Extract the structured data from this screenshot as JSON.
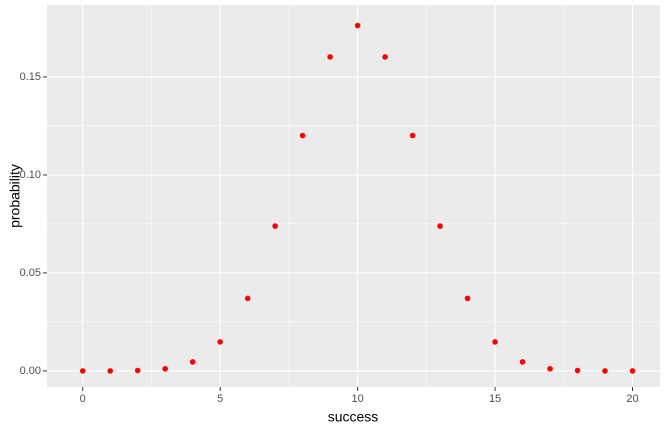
{
  "chart_data": {
    "type": "scatter",
    "x_label": "success",
    "y_label": "probability",
    "x": [
      0,
      1,
      2,
      3,
      4,
      5,
      6,
      7,
      8,
      9,
      10,
      11,
      12,
      13,
      14,
      15,
      16,
      17,
      18,
      19,
      20
    ],
    "values": [
      0,
      0,
      0.0002,
      0.0011,
      0.0046,
      0.0148,
      0.037,
      0.0739,
      0.1201,
      0.1602,
      0.1762,
      0.1602,
      0.1201,
      0.0739,
      0.037,
      0.0148,
      0.0046,
      0.0011,
      0.0002,
      0,
      0
    ],
    "color": "#ff0000",
    "xlim": [
      -1.3,
      21
    ],
    "xticks": [
      0,
      5,
      10,
      15,
      20
    ],
    "ylim": [
      -0.0082,
      0.1867
    ],
    "yticks": [
      {
        "value": 0,
        "label": "0.00"
      },
      {
        "value": 0.05,
        "label": "0.05"
      },
      {
        "value": 0.1,
        "label": "0.10"
      },
      {
        "value": 0.15,
        "label": "0.15"
      }
    ],
    "grid": true
  }
}
